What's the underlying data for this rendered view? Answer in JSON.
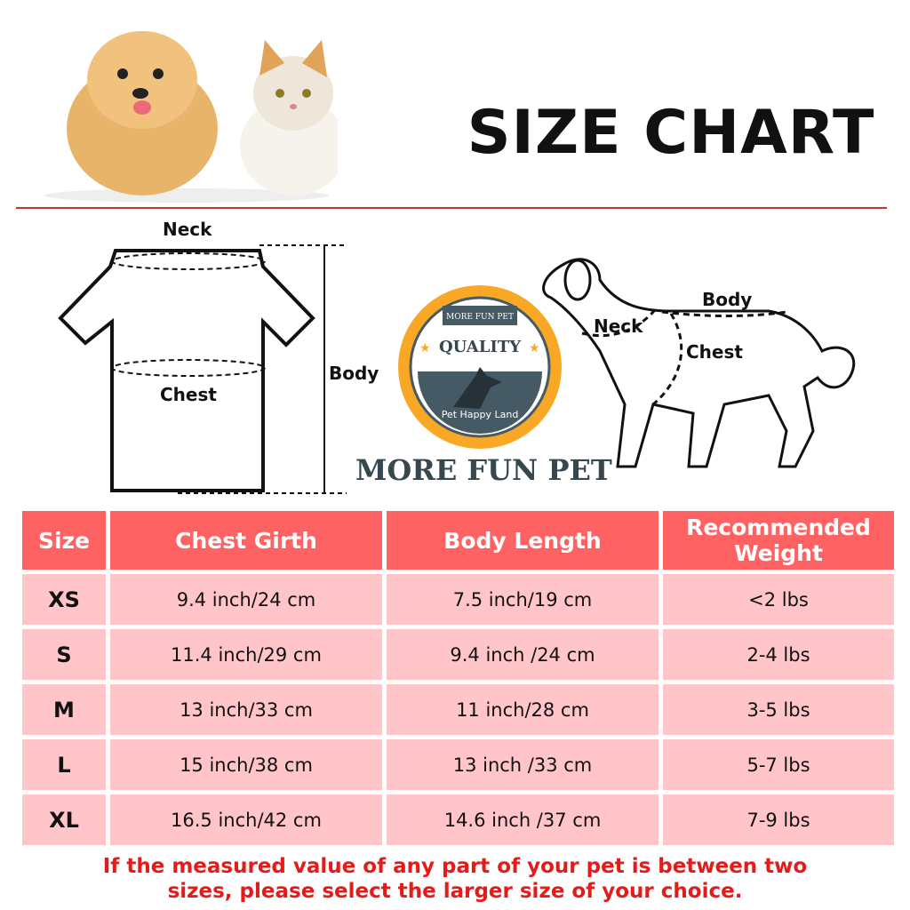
{
  "header": {
    "title": "SIZE CHART"
  },
  "diagram": {
    "shirt_labels": {
      "neck": "Neck",
      "chest": "Chest",
      "body": "Body"
    },
    "dog_labels": {
      "neck": "Neck",
      "chest": "Chest",
      "body": "Body"
    }
  },
  "badge": {
    "top": "MORE FUN PET",
    "center": "QUALITY",
    "bottom": "Pet Happy Land",
    "brand": "MORE FUN PET"
  },
  "colors": {
    "header_bg": "#ff6262",
    "row_bg": "#ffc5c8",
    "note": "#e41b1b",
    "rule": "#c0392b"
  },
  "chart_data": {
    "type": "table",
    "columns": [
      "Size",
      "Chest Girth",
      "Body Length",
      "Recommended Weight"
    ],
    "rows": [
      [
        "XS",
        "9.4 inch/24 cm",
        "7.5 inch/19 cm",
        "<2 lbs"
      ],
      [
        "S",
        "11.4 inch/29 cm",
        "9.4 inch /24 cm",
        "2-4 lbs"
      ],
      [
        "M",
        "13 inch/33 cm",
        "11 inch/28 cm",
        "3-5 lbs"
      ],
      [
        "L",
        "15 inch/38 cm",
        "13 inch /33 cm",
        "5-7 lbs"
      ],
      [
        "XL",
        "16.5 inch/42 cm",
        "14.6 inch /37 cm",
        "7-9 lbs"
      ]
    ]
  },
  "note": {
    "line1": "If the measured value of any part of your pet is between two",
    "line2": "sizes, please select the larger size of your choice."
  }
}
